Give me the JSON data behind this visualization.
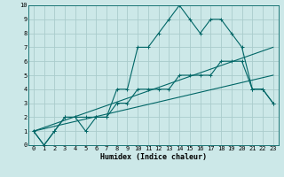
{
  "title": "",
  "xlabel": "Humidex (Indice chaleur)",
  "ylabel": "",
  "bg_color": "#cce8e8",
  "grid_color": "#aacccc",
  "line_color": "#006666",
  "xlim": [
    -0.5,
    23.5
  ],
  "ylim": [
    0,
    10
  ],
  "xticks": [
    0,
    1,
    2,
    3,
    4,
    5,
    6,
    7,
    8,
    9,
    10,
    11,
    12,
    13,
    14,
    15,
    16,
    17,
    18,
    19,
    20,
    21,
    22,
    23
  ],
  "yticks": [
    0,
    1,
    2,
    3,
    4,
    5,
    6,
    7,
    8,
    9,
    10
  ],
  "series1_x": [
    0,
    1,
    2,
    3,
    4,
    5,
    6,
    7,
    8,
    9,
    10,
    11,
    12,
    13,
    14,
    15,
    16,
    17,
    18,
    19,
    20,
    21,
    22,
    23
  ],
  "series1_y": [
    1,
    0,
    1,
    2,
    2,
    1,
    2,
    2,
    4,
    4,
    7,
    7,
    8,
    9,
    10,
    9,
    8,
    9,
    9,
    8,
    7,
    4,
    4,
    3
  ],
  "series2_x": [
    0,
    1,
    2,
    3,
    4,
    5,
    6,
    7,
    8,
    9,
    10,
    11,
    12,
    13,
    14,
    15,
    16,
    17,
    18,
    19,
    20,
    21,
    22,
    23
  ],
  "series2_y": [
    1,
    0,
    1,
    2,
    2,
    2,
    2,
    2,
    3,
    3,
    4,
    4,
    4,
    4,
    5,
    5,
    5,
    5,
    6,
    6,
    6,
    4,
    4,
    3
  ],
  "series3_x": [
    0,
    23
  ],
  "series3_y": [
    1,
    7
  ],
  "series4_x": [
    0,
    23
  ],
  "series4_y": [
    1,
    5
  ],
  "xlabel_fontsize": 6,
  "tick_fontsize": 5
}
